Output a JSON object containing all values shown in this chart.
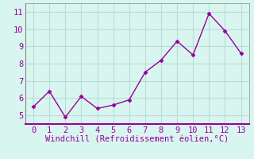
{
  "x": [
    0,
    1,
    2,
    3,
    4,
    5,
    6,
    7,
    8,
    9,
    10,
    11,
    12,
    13
  ],
  "y": [
    5.5,
    6.4,
    4.9,
    6.1,
    5.4,
    5.6,
    5.9,
    7.5,
    8.2,
    9.3,
    8.5,
    10.9,
    9.9,
    8.6
  ],
  "line_color": "#990099",
  "marker": "D",
  "marker_size": 2.5,
  "bg_color": "#d9f5f0",
  "grid_color": "#b8ddd8",
  "xlabel": "Windchill (Refroidissement éolien,°C)",
  "xlabel_color": "#990099",
  "tick_color": "#990099",
  "xlim": [
    -0.5,
    13.5
  ],
  "ylim": [
    4.5,
    11.5
  ],
  "yticks": [
    5,
    6,
    7,
    8,
    9,
    10,
    11
  ],
  "xticks": [
    0,
    1,
    2,
    3,
    4,
    5,
    6,
    7,
    8,
    9,
    10,
    11,
    12,
    13
  ],
  "spine_color": "#888888",
  "bottom_spine_color": "#990099",
  "left_spine_color": "#888888",
  "tick_fontsize": 7.5,
  "xlabel_fontsize": 7.5
}
